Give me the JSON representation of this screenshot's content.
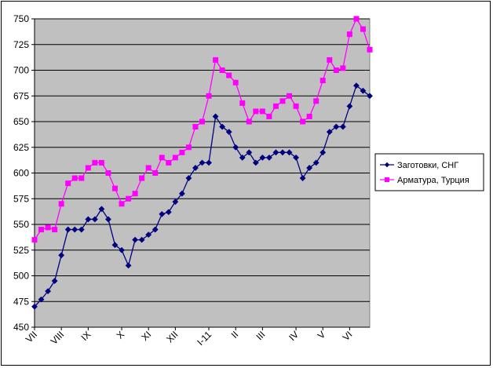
{
  "chart_data": {
    "type": "line",
    "title": "",
    "xlabel": "",
    "ylabel": "",
    "ylim": [
      450,
      750
    ],
    "yticks": [
      450,
      475,
      500,
      525,
      550,
      575,
      600,
      625,
      650,
      675,
      700,
      725,
      750
    ],
    "grid": true,
    "legend_position": "right",
    "x_tick_labels": [
      {
        "label": "VII",
        "index": 0
      },
      {
        "label": "VIII",
        "index": 4
      },
      {
        "label": "IX",
        "index": 8
      },
      {
        "label": "X",
        "index": 13
      },
      {
        "label": "XI",
        "index": 17
      },
      {
        "label": "XII",
        "index": 21
      },
      {
        "label": "I-11",
        "index": 26
      },
      {
        "label": "II",
        "index": 30
      },
      {
        "label": "III",
        "index": 34
      },
      {
        "label": "IV",
        "index": 39
      },
      {
        "label": "V",
        "index": 43
      },
      {
        "label": "VI",
        "index": 47
      }
    ],
    "series": [
      {
        "name": "Заготовки, СНГ",
        "color": "#000080",
        "marker": "diamond",
        "values": [
          470,
          477,
          485,
          495,
          520,
          545,
          545,
          545,
          555,
          555,
          565,
          555,
          530,
          525,
          510,
          535,
          535,
          540,
          545,
          560,
          562,
          572,
          580,
          595,
          605,
          610,
          610,
          655,
          645,
          640,
          625,
          615,
          620,
          610,
          615,
          615,
          620,
          620,
          620,
          615,
          595,
          605,
          610,
          620,
          640,
          645,
          645,
          665,
          685,
          680,
          675
        ]
      },
      {
        "name": "Арматура, Турция",
        "color": "#FF00FF",
        "marker": "square",
        "values": [
          535,
          545,
          547,
          545,
          570,
          590,
          595,
          595,
          605,
          610,
          610,
          600,
          585,
          570,
          575,
          580,
          595,
          605,
          600,
          615,
          610,
          615,
          620,
          625,
          645,
          650,
          675,
          710,
          700,
          695,
          688,
          668,
          650,
          660,
          660,
          655,
          665,
          670,
          675,
          665,
          650,
          655,
          670,
          690,
          710,
          700,
          702,
          735,
          750,
          740,
          720
        ]
      }
    ]
  },
  "colors": {
    "plot_background": "#C0C0C0",
    "gridline": "#000000"
  }
}
